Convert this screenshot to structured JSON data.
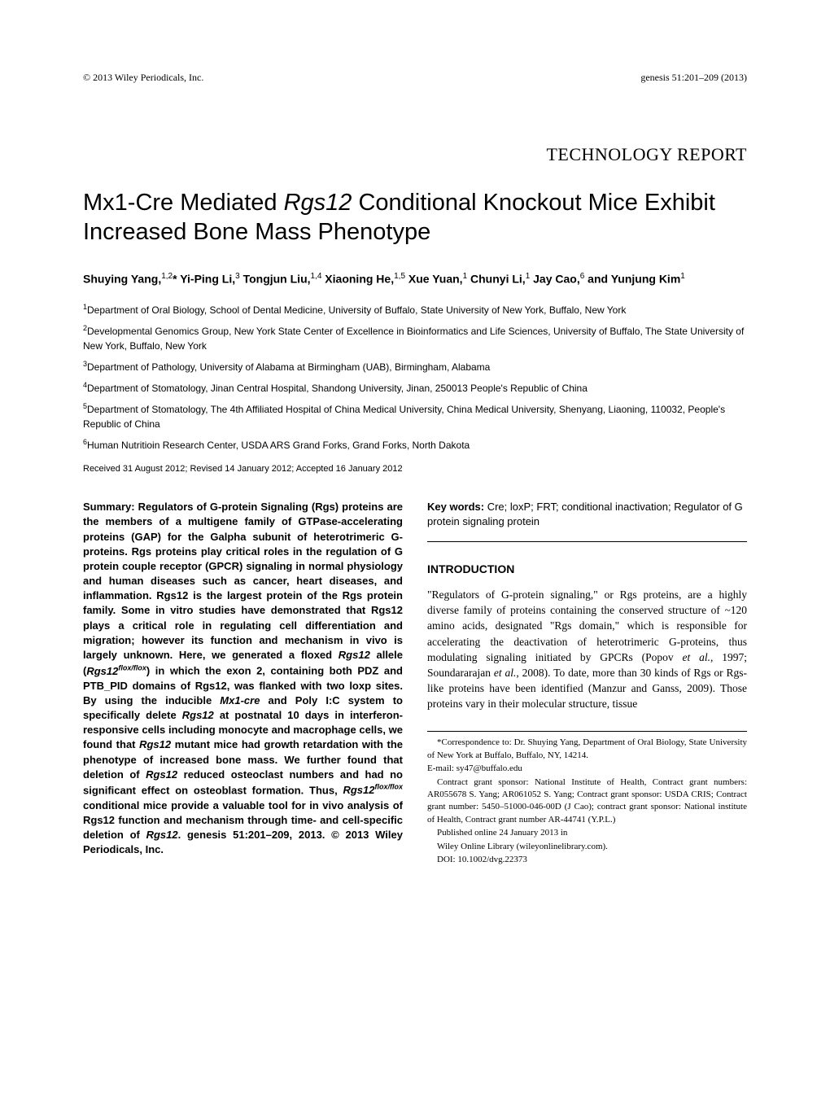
{
  "header": {
    "left": "© 2013 Wiley Periodicals, Inc.",
    "right": "genesis 51:201–209 (2013)"
  },
  "section_label": "TECHNOLOGY REPORT",
  "title_pre": "Mx1-Cre Mediated ",
  "title_ital": "Rgs12",
  "title_post": " Conditional Knockout Mice Exhibit Increased Bone Mass Phenotype",
  "authors_html": "Shuying Yang,<sup>1,2</sup>* Yi-Ping Li,<sup>3</sup> Tongjun Liu,<sup>1,4</sup> Xiaoning He,<sup>1,5</sup> Xue Yuan,<sup>1</sup> Chunyi Li,<sup>1</sup> Jay Cao,<sup>6</sup> and Yunjung Kim<sup>1</sup>",
  "affiliations": [
    {
      "sup": "1",
      "text": "Department of Oral Biology, School of Dental Medicine, University of Buffalo, State University of New York, Buffalo, New York"
    },
    {
      "sup": "2",
      "text": "Developmental Genomics Group, New York State Center of Excellence in Bioinformatics and Life Sciences, University of Buffalo, The State University of New York, Buffalo, New York"
    },
    {
      "sup": "3",
      "text": "Department of Pathology, University of Alabama at Birmingham (UAB), Birmingham, Alabama"
    },
    {
      "sup": "4",
      "text": "Department of Stomatology, Jinan Central Hospital, Shandong University, Jinan, 250013 People's Republic of China"
    },
    {
      "sup": "5",
      "text": "Department of Stomatology, The 4th Affiliated Hospital of China Medical University, China Medical University, Shenyang, Liaoning, 110032, People's Republic of China"
    },
    {
      "sup": "6",
      "text": "Human Nutritioin Research Center, USDA ARS Grand Forks, Grand Forks, North Dakota"
    }
  ],
  "received": "Received 31 August 2012; Revised 14 January 2012; Accepted 16 January 2012",
  "summary_html": "<span class=\"label\">Summary:</span> Regulators of G-protein Signaling (Rgs) proteins are the members of a multigene family of GTPase-accelerating proteins (GAP) for the Galpha subunit of heterotrimeric G-proteins. Rgs proteins play critical roles in the regulation of G protein couple receptor (GPCR) signaling in normal physiology and human diseases such as cancer, heart diseases, and inflammation. Rgs12 is the largest protein of the Rgs protein family. Some in vitro studies have demonstrated that Rgs12 plays a critical role in regulating cell differentiation and migration; however its function and mechanism in vivo is largely unknown. Here, we generated a floxed <span class=\"ital\">Rgs12</span> allele (<span class=\"ital\">Rgs12<sup>flox/flox</sup></span>) in which the exon 2, containing both PDZ and PTB_PID domains of Rgs12, was flanked with two loxp sites. By using the inducible <span class=\"ital\">Mx1-cre</span> and Poly I:C system to specifically delete <span class=\"ital\">Rgs12</span> at postnatal 10 days in interferon-responsive cells including monocyte and macrophage cells, we found that <span class=\"ital\">Rgs12</span> mutant mice had growth retardation with the phenotype of increased bone mass. We further found that deletion of <span class=\"ital\">Rgs12</span> reduced osteoclast numbers and had no significant effect on osteoblast formation. Thus, <span class=\"ital\">Rgs12<sup>flox/flox</sup></span> conditional mice provide a valuable tool for in vivo analysis of Rgs12 function and mechanism through time- and cell-specific deletion of <span class=\"ital\">Rgs12</span>. genesis 51:201–209, 2013. © 2013 Wiley Periodicals, Inc.",
  "keywords_label": "Key words:",
  "keywords_text": " Cre; loxP; FRT; conditional inactivation; Regulator of G protein signaling protein",
  "intro_heading": "INTRODUCTION",
  "intro_body_html": "\"Regulators of G-protein signaling,\" or Rgs proteins, are a highly diverse family of proteins containing the conserved structure of ~120 amino acids, designated \"Rgs domain,\" which is responsible for accelerating the deactivation of heterotrimeric G-proteins, thus modulating signaling initiated by GPCRs (Popov <span class=\"ital\">et al.</span>, 1997; Soundararajan <span class=\"ital\">et al.</span>, 2008). To date, more than 30 kinds of Rgs or Rgs-like proteins have been identified (Manzur and Ganss, 2009). Those proteins vary in their molecular structure, tissue",
  "footnotes": {
    "correspondence": "*Correspondence to: Dr. Shuying Yang, Department of Oral Biology, State University of New York at Buffalo, Buffalo, NY, 14214.",
    "email": "E-mail: sy47@buffalo.edu",
    "grants": "Contract grant sponsor: National Institute of Health, Contract grant numbers: AR055678 S. Yang; AR061052 S. Yang; Contract grant sponsor: USDA CRIS; Contract grant number: 5450–51000-046-00D (J Cao); contract grant sponsor: National institute of Health, Contract grant number AR-44741 (Y.P.L.)",
    "published": "Published online 24 January 2013 in",
    "library": "Wiley Online Library (wileyonlinelibrary.com).",
    "doi": "DOI: 10.1002/dvg.22373"
  }
}
